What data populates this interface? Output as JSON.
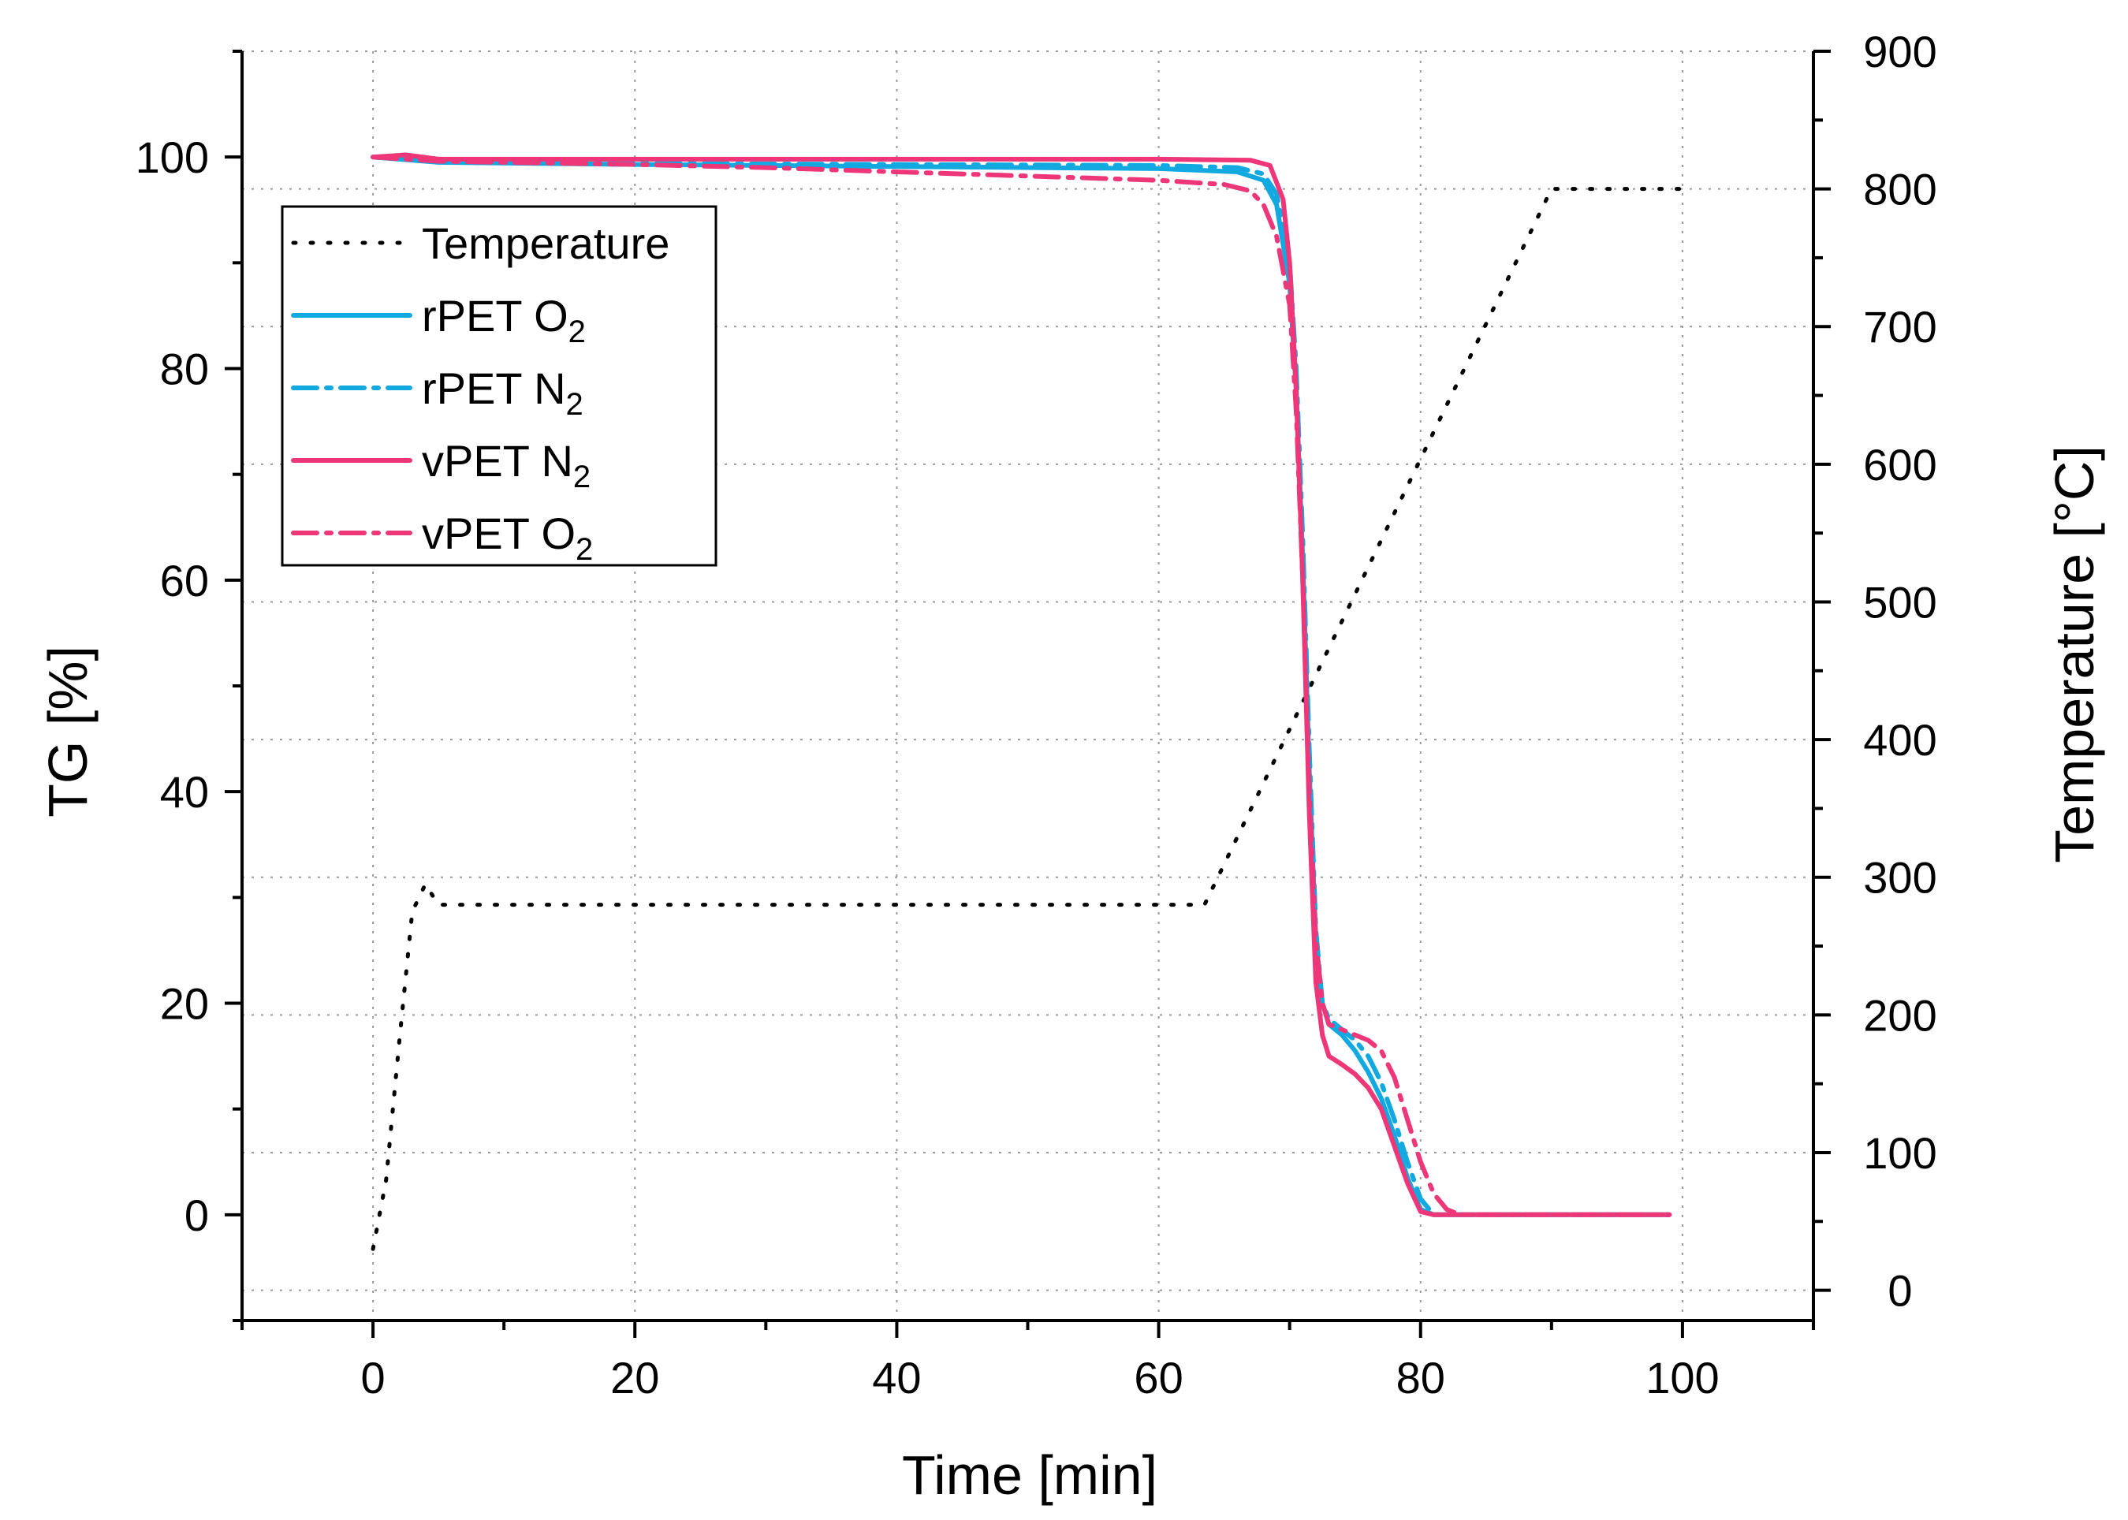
{
  "chart_data": {
    "type": "line",
    "title": "",
    "xlabel": "Time [min]",
    "ylabel": "TG [%]",
    "y2label": "Temperature [°C]",
    "xlim": [
      -10,
      110
    ],
    "ylim": [
      -10,
      110
    ],
    "y2lim": [
      -22,
      900
    ],
    "xticks": [
      0,
      20,
      40,
      60,
      80,
      100
    ],
    "yticks": [
      0,
      20,
      40,
      60,
      80,
      100
    ],
    "y2ticks": [
      0,
      100,
      200,
      300,
      400,
      500,
      600,
      700,
      800,
      900
    ],
    "grid": true,
    "legend_position": "top-left",
    "series": [
      {
        "name": "Temperature",
        "axis": "right",
        "color": "#000000",
        "dash": "dot",
        "legend": {
          "base": "Temperature",
          "sub": ""
        },
        "points": [
          [
            0,
            30
          ],
          [
            1,
            80
          ],
          [
            2,
            180
          ],
          [
            3,
            275
          ],
          [
            4,
            295
          ],
          [
            5,
            280
          ],
          [
            10,
            280
          ],
          [
            30,
            280
          ],
          [
            50,
            280
          ],
          [
            63.5,
            280
          ],
          [
            90,
            800
          ],
          [
            100,
            800
          ]
        ]
      },
      {
        "name": "rPET O2",
        "axis": "left",
        "color": "#12A9E0",
        "dash": "solid",
        "legend": {
          "base": "rPET O",
          "sub": "2"
        },
        "points": [
          [
            0,
            100
          ],
          [
            5,
            99.5
          ],
          [
            20,
            99.3
          ],
          [
            40,
            99.1
          ],
          [
            60,
            98.9
          ],
          [
            66,
            98.6
          ],
          [
            68,
            97.8
          ],
          [
            69,
            95.5
          ],
          [
            70,
            88
          ],
          [
            70.5,
            78
          ],
          [
            71,
            62
          ],
          [
            71.5,
            42
          ],
          [
            72,
            26
          ],
          [
            72.5,
            20
          ],
          [
            73,
            18
          ],
          [
            74,
            17
          ],
          [
            75,
            15.5
          ],
          [
            76,
            13.5
          ],
          [
            77,
            11
          ],
          [
            78,
            7.5
          ],
          [
            79,
            3.5
          ],
          [
            80,
            0.5
          ],
          [
            81,
            0
          ],
          [
            90,
            0
          ],
          [
            99,
            0
          ]
        ]
      },
      {
        "name": "rPET N2",
        "axis": "left",
        "color": "#12A9E0",
        "dash": "dashdot",
        "legend": {
          "base": "rPET N",
          "sub": "2"
        },
        "points": [
          [
            0,
            100
          ],
          [
            5,
            99.6
          ],
          [
            20,
            99.4
          ],
          [
            40,
            99.3
          ],
          [
            60,
            99.2
          ],
          [
            66,
            99.0
          ],
          [
            68,
            98.4
          ],
          [
            69,
            96.5
          ],
          [
            70,
            90
          ],
          [
            70.5,
            80
          ],
          [
            71,
            64
          ],
          [
            71.5,
            44
          ],
          [
            72,
            27
          ],
          [
            72.5,
            20
          ],
          [
            73,
            18.5
          ],
          [
            74,
            17.5
          ],
          [
            75,
            16.5
          ],
          [
            76,
            15
          ],
          [
            77,
            12.5
          ],
          [
            78,
            9
          ],
          [
            79,
            5
          ],
          [
            80,
            1.5
          ],
          [
            81,
            0
          ],
          [
            90,
            0
          ],
          [
            99,
            0
          ]
        ]
      },
      {
        "name": "vPET N2",
        "axis": "left",
        "color": "#EE3779",
        "dash": "solid",
        "legend": {
          "base": "vPET N",
          "sub": "2"
        },
        "points": [
          [
            0,
            100
          ],
          [
            2.5,
            100.2
          ],
          [
            5,
            99.8
          ],
          [
            20,
            99.8
          ],
          [
            40,
            99.8
          ],
          [
            60,
            99.8
          ],
          [
            67,
            99.7
          ],
          [
            68.5,
            99.2
          ],
          [
            69.5,
            96
          ],
          [
            70,
            90
          ],
          [
            70.5,
            78
          ],
          [
            71,
            60
          ],
          [
            71.5,
            38
          ],
          [
            72,
            22
          ],
          [
            72.5,
            17
          ],
          [
            73,
            15
          ],
          [
            74,
            14.2
          ],
          [
            75,
            13.3
          ],
          [
            76,
            12
          ],
          [
            77,
            10
          ],
          [
            78,
            6.5
          ],
          [
            79,
            3
          ],
          [
            80,
            0.3
          ],
          [
            81,
            0
          ],
          [
            90,
            0
          ],
          [
            99,
            0
          ]
        ]
      },
      {
        "name": "vPET O2",
        "axis": "left",
        "color": "#EE3779",
        "dash": "dashdot",
        "legend": {
          "base": "vPET O",
          "sub": "2"
        },
        "points": [
          [
            0,
            100
          ],
          [
            5,
            99.6
          ],
          [
            20,
            99.3
          ],
          [
            30,
            99.0
          ],
          [
            40,
            98.6
          ],
          [
            50,
            98.2
          ],
          [
            60,
            97.8
          ],
          [
            65,
            97.4
          ],
          [
            67,
            96.8
          ],
          [
            68,
            95.5
          ],
          [
            69,
            92.5
          ],
          [
            70,
            86
          ],
          [
            70.5,
            76
          ],
          [
            71,
            60
          ],
          [
            71.5,
            40
          ],
          [
            72,
            26
          ],
          [
            72.5,
            20
          ],
          [
            73,
            18
          ],
          [
            74,
            17.5
          ],
          [
            75,
            17
          ],
          [
            76,
            16.5
          ],
          [
            77,
            15.5
          ],
          [
            78,
            13
          ],
          [
            79,
            9
          ],
          [
            80,
            5
          ],
          [
            81,
            2
          ],
          [
            82,
            0.5
          ],
          [
            83,
            0
          ],
          [
            90,
            0
          ],
          [
            99,
            0
          ]
        ]
      }
    ]
  }
}
